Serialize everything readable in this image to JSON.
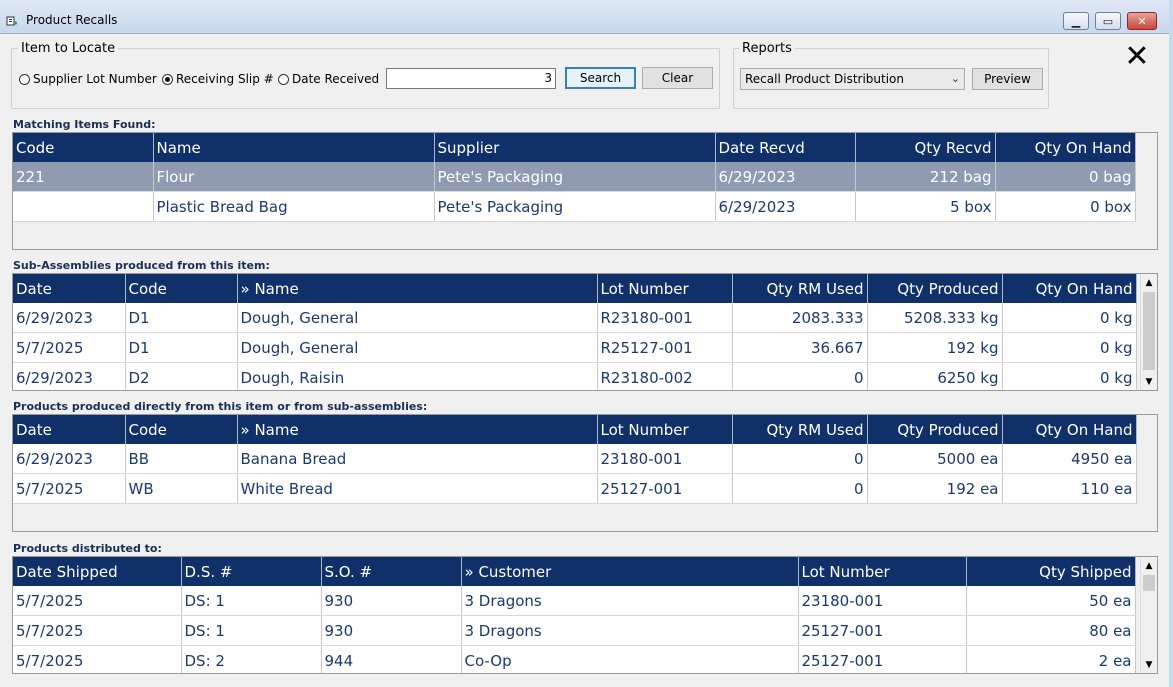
{
  "window": {
    "title": "Product Recalls"
  },
  "locate": {
    "group_label": "Item to Locate",
    "options": [
      {
        "label": "Supplier Lot Number",
        "selected": false
      },
      {
        "label": "Receiving Slip #",
        "selected": true
      },
      {
        "label": "Date Received",
        "selected": false
      }
    ],
    "search_value": "3",
    "search_button": "Search",
    "clear_button": "Clear"
  },
  "reports": {
    "group_label": "Reports",
    "selected": "Recall Product Distribution",
    "preview_button": "Preview"
  },
  "matching": {
    "label": "Matching Items Found:",
    "columns": [
      "Code",
      "Name",
      "Supplier",
      "Date Recvd",
      "Qty Recvd",
      "Qty On Hand"
    ],
    "rows": [
      [
        "221",
        "Flour",
        "Pete's Packaging",
        "6/29/2023",
        "212 bag",
        "0 bag"
      ],
      [
        "",
        "Plastic Bread Bag",
        "Pete's Packaging",
        "6/29/2023",
        "5 box",
        "0 box"
      ]
    ]
  },
  "subassemblies": {
    "label": "Sub-Assemblies produced from this item:",
    "columns": [
      "Date",
      "Code",
      "» Name",
      "Lot Number",
      "Qty RM Used",
      "Qty Produced",
      "Qty On Hand"
    ],
    "rows": [
      [
        "6/29/2023",
        "D1",
        "Dough, General",
        "R23180-001",
        "2083.333",
        "5208.333 kg",
        "0 kg"
      ],
      [
        "5/7/2025",
        "D1",
        "Dough, General",
        "R25127-001",
        "36.667",
        "192 kg",
        "0 kg"
      ],
      [
        "6/29/2023",
        "D2",
        "Dough, Raisin",
        "R23180-002",
        "0",
        "6250 kg",
        "0 kg"
      ]
    ]
  },
  "products": {
    "label": "Products produced directly from this item or from sub-assemblies:",
    "columns": [
      "Date",
      "Code",
      "» Name",
      "Lot Number",
      "Qty RM Used",
      "Qty Produced",
      "Qty On Hand"
    ],
    "rows": [
      [
        "6/29/2023",
        "BB",
        "Banana Bread",
        "23180-001",
        "0",
        "5000 ea",
        "4950 ea"
      ],
      [
        "5/7/2025",
        "WB",
        "White Bread",
        "25127-001",
        "0",
        "192 ea",
        "110 ea"
      ]
    ]
  },
  "distributed": {
    "label": "Products distributed to:",
    "columns": [
      "Date Shipped",
      "D.S. #",
      "S.O. #",
      "» Customer",
      "Lot Number",
      "Qty Shipped"
    ],
    "rows": [
      [
        "5/7/2025",
        "DS: 1",
        "930",
        "3 Dragons",
        "23180-001",
        "50 ea"
      ],
      [
        "5/7/2025",
        "DS: 1",
        "930",
        "3 Dragons",
        "25127-001",
        "80 ea"
      ],
      [
        "5/7/2025",
        "DS: 2",
        "944",
        "Co-Op",
        "25127-001",
        "2 ea"
      ]
    ]
  }
}
